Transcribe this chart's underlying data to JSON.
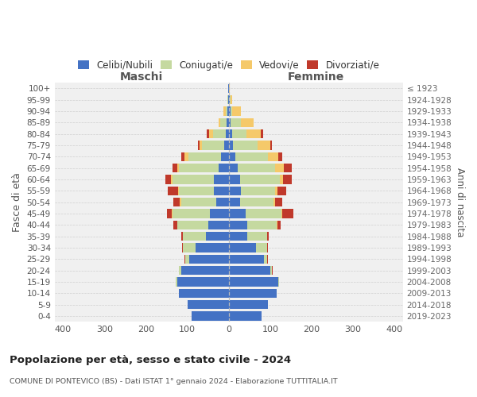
{
  "age_groups": [
    "100+",
    "95-99",
    "90-94",
    "85-89",
    "80-84",
    "75-79",
    "70-74",
    "65-69",
    "60-64",
    "55-59",
    "50-54",
    "45-49",
    "40-44",
    "35-39",
    "30-34",
    "25-29",
    "20-24",
    "15-19",
    "10-14",
    "5-9",
    "0-4"
  ],
  "birth_years": [
    "≤ 1923",
    "1924-1928",
    "1929-1933",
    "1934-1938",
    "1939-1943",
    "1944-1948",
    "1949-1953",
    "1954-1958",
    "1959-1963",
    "1964-1968",
    "1969-1973",
    "1974-1978",
    "1979-1983",
    "1984-1988",
    "1989-1993",
    "1994-1998",
    "1999-2003",
    "2004-2008",
    "2009-2013",
    "2014-2018",
    "2019-2023"
  ],
  "maschi": {
    "celibi": [
      1,
      2,
      3,
      5,
      8,
      10,
      18,
      25,
      35,
      35,
      30,
      45,
      50,
      55,
      80,
      95,
      115,
      125,
      120,
      100,
      90
    ],
    "coniugati": [
      0,
      1,
      4,
      15,
      30,
      55,
      80,
      95,
      100,
      85,
      85,
      90,
      75,
      55,
      30,
      10,
      5,
      2,
      0,
      0,
      0
    ],
    "vedovi": [
      0,
      1,
      5,
      5,
      10,
      5,
      8,
      5,
      5,
      3,
      3,
      2,
      0,
      0,
      0,
      0,
      0,
      0,
      0,
      0,
      0
    ],
    "divorziati": [
      0,
      0,
      0,
      0,
      5,
      5,
      8,
      10,
      12,
      25,
      15,
      12,
      8,
      5,
      3,
      1,
      0,
      0,
      0,
      0,
      0
    ]
  },
  "femmine": {
    "nubili": [
      1,
      2,
      4,
      5,
      8,
      10,
      15,
      22,
      28,
      30,
      28,
      40,
      45,
      45,
      65,
      85,
      100,
      120,
      115,
      95,
      80
    ],
    "coniugate": [
      0,
      2,
      5,
      25,
      35,
      60,
      80,
      90,
      95,
      82,
      80,
      88,
      70,
      48,
      28,
      8,
      5,
      2,
      0,
      0,
      0
    ],
    "vedove": [
      1,
      5,
      20,
      30,
      35,
      30,
      25,
      20,
      8,
      5,
      3,
      2,
      2,
      0,
      0,
      0,
      0,
      0,
      0,
      0,
      0
    ],
    "divorziate": [
      0,
      0,
      0,
      0,
      5,
      5,
      10,
      20,
      22,
      22,
      18,
      25,
      8,
      4,
      2,
      2,
      1,
      0,
      0,
      0,
      0
    ]
  },
  "colors": {
    "celibi_nubili": "#4472c4",
    "coniugati": "#c5d9a0",
    "vedovi": "#f5c96a",
    "divorziati": "#c0392b"
  },
  "xlim": 420,
  "title": "Popolazione per età, sesso e stato civile - 2024",
  "subtitle": "COMUNE DI PONTEVICO (BS) - Dati ISTAT 1° gennaio 2024 - Elaborazione TUTTITALIA.IT",
  "ylabel_left": "Fasce di età",
  "ylabel_right": "Anni di nascita",
  "xlabel_maschi": "Maschi",
  "xlabel_femmine": "Femmine",
  "legend_labels": [
    "Celibi/Nubili",
    "Coniugati/e",
    "Vedovi/e",
    "Divorziati/e"
  ],
  "bg_color": "#ffffff",
  "plot_bg_color": "#f0f0f0",
  "grid_color": "#cccccc"
}
